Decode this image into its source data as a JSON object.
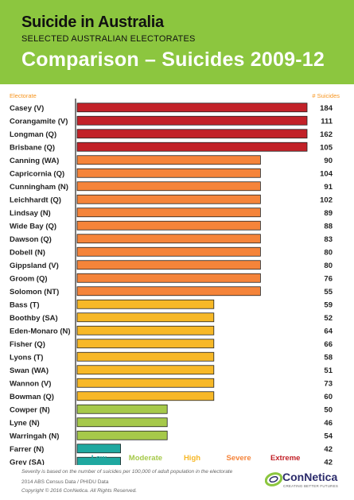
{
  "header": {
    "title": "Suicide in Australia",
    "subtitle": "SELECTED AUSTRALIAN ELECTORATES",
    "main_title": "Comparison – Suicides 2009-12",
    "bg_color": "#8cc63f"
  },
  "columns": {
    "left": "Electorate",
    "right": "# Suicides"
  },
  "severity_colors": {
    "Low": "#1fa8a0",
    "Moderate": "#a6c94a",
    "High": "#f7b827",
    "Severe": "#f5843a",
    "Extreme": "#c22128"
  },
  "chart_data": {
    "type": "bar",
    "orientation": "horizontal",
    "categories": [
      "Casey (V)",
      "Corangamite (V)",
      "Longman (Q)",
      "Brisbane (Q)",
      "Canning (WA)",
      "Capricornia (Q)",
      "Cunningham (N)",
      "Leichhardt (Q)",
      "Lindsay (N)",
      "Wide Bay (Q)",
      "Dawson (Q)",
      "Dobell (N)",
      "Gippsland (V)",
      "Groom (Q)",
      "Solomon (NT)",
      "Bass (T)",
      "Boothby (SA)",
      "Eden-Monaro (N)",
      "Fisher (Q)",
      "Lyons (T)",
      "Swan (WA)",
      "Wannon (V)",
      "Bowman (Q)",
      "Cowper (N)",
      "Lyne (N)",
      "Warringah (N)",
      "Farrer (N)",
      "Grey (SA)"
    ],
    "suicides": [
      184,
      111,
      162,
      105,
      90,
      104,
      91,
      102,
      89,
      88,
      83,
      80,
      80,
      76,
      55,
      59,
      52,
      64,
      66,
      58,
      51,
      73,
      60,
      50,
      46,
      54,
      42,
      42
    ],
    "severity": [
      "Extreme",
      "Extreme",
      "Extreme",
      "Extreme",
      "Severe",
      "Severe",
      "Severe",
      "Severe",
      "Severe",
      "Severe",
      "Severe",
      "Severe",
      "Severe",
      "Severe",
      "Severe",
      "High",
      "High",
      "High",
      "High",
      "High",
      "High",
      "High",
      "High",
      "Moderate",
      "Moderate",
      "Moderate",
      "Low",
      "Low"
    ],
    "severity_levels": [
      "Low",
      "Moderate",
      "High",
      "Severe",
      "Extreme"
    ]
  },
  "footer": {
    "severity_note": "Severity is based on the number of suicides per 100,000 of adult population in the electorate",
    "source": "2014 ABS Census Data / PHIDU Data",
    "copyright": "Copyright © 2016 ConNetica. All Rights Reserved.",
    "logo_name": "ConNetica",
    "logo_tagline": "CREATING BETTER FUTURES"
  }
}
